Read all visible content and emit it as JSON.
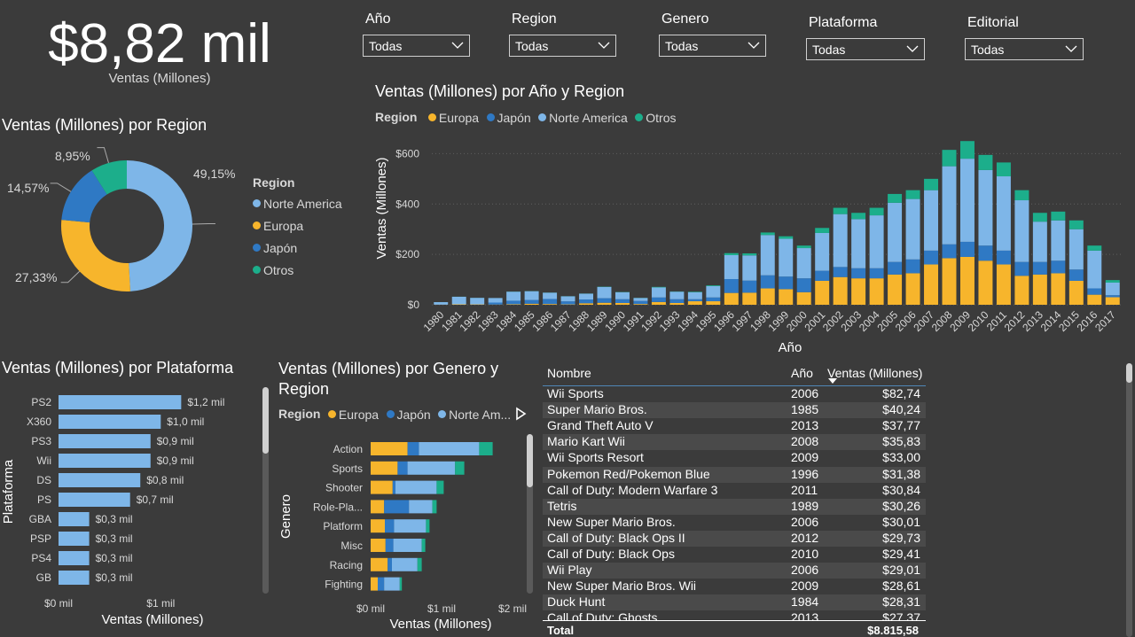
{
  "kpi": {
    "value": "$8,82 mil",
    "label": "Ventas (Millones)"
  },
  "slicers": [
    {
      "label": "Año",
      "value": "Todas"
    },
    {
      "label": "Region",
      "value": "Todas"
    },
    {
      "label": "Genero",
      "value": "Todas"
    },
    {
      "label": "Plataforma",
      "value": "Todas"
    },
    {
      "label": "Editorial",
      "value": "Todas"
    }
  ],
  "colors": {
    "europa": "#f7b52c",
    "japon": "#2f79c4",
    "norte_america": "#7eb6e8",
    "otros": "#1cae8b",
    "background": "#3b3b3b"
  },
  "chart_data": [
    {
      "type": "pie",
      "title": "Ventas (Millones) por Region",
      "legend_title": "Region",
      "legend_position": "right",
      "labels": [
        "Norte America",
        "Europa",
        "Japón",
        "Otros"
      ],
      "values": [
        49.15,
        27.33,
        14.57,
        8.95
      ],
      "value_labels": [
        "49,15%",
        "27,33%",
        "14,57%",
        "8,95%"
      ]
    },
    {
      "type": "bar",
      "title": "Ventas (Millones) por Año y Region",
      "legend_title": "Region",
      "legend_position": "top-left",
      "xlabel": "Año",
      "ylabel": "Ventas (Millones)",
      "ylim": [
        0,
        700
      ],
      "yticks": [
        0,
        200,
        400,
        600
      ],
      "ytick_labels": [
        "$0",
        "$200",
        "$400",
        "$600"
      ],
      "categories": [
        "1980",
        "1981",
        "1982",
        "1983",
        "1984",
        "1985",
        "1986",
        "1987",
        "1988",
        "1989",
        "1990",
        "1991",
        "1992",
        "1993",
        "1994",
        "1995",
        "1996",
        "1997",
        "1998",
        "1999",
        "2000",
        "2001",
        "2002",
        "2003",
        "2004",
        "2005",
        "2006",
        "2007",
        "2008",
        "2009",
        "2010",
        "2011",
        "2012",
        "2013",
        "2014",
        "2015",
        "2016",
        "2017"
      ],
      "series": [
        {
          "name": "Europa",
          "values": [
            0.5,
            1.8,
            1.5,
            0.8,
            2,
            4,
            3,
            1.5,
            6,
            8,
            7,
            3,
            11,
            7,
            14,
            14,
            47,
            48,
            65,
            62,
            50,
            95,
            110,
            105,
            105,
            120,
            125,
            160,
            185,
            190,
            175,
            160,
            115,
            120,
            125,
            95,
            40,
            30
          ]
        },
        {
          "name": "Japón",
          "values": [
            0,
            0,
            0,
            8,
            14,
            15,
            20,
            12,
            15,
            18,
            15,
            12,
            18,
            15,
            8,
            15,
            55,
            48,
            52,
            50,
            55,
            40,
            40,
            40,
            40,
            50,
            55,
            55,
            55,
            60,
            60,
            55,
            55,
            50,
            50,
            45,
            25,
            8
          ]
        },
        {
          "name": "Norte America",
          "values": [
            10,
            30,
            26,
            18,
            36,
            35,
            25,
            20,
            23,
            45,
            28,
            12,
            40,
            30,
            28,
            45,
            95,
            100,
            160,
            150,
            120,
            150,
            210,
            195,
            210,
            235,
            240,
            240,
            310,
            330,
            300,
            295,
            245,
            160,
            160,
            160,
            150,
            50
          ]
        },
        {
          "name": "Otros",
          "values": [
            0.1,
            0.3,
            0.3,
            0.1,
            0.5,
            0.5,
            0.5,
            0.5,
            0.5,
            1,
            1,
            0.5,
            2,
            1,
            2,
            3,
            8,
            8,
            10,
            10,
            10,
            20,
            25,
            25,
            30,
            35,
            35,
            45,
            65,
            70,
            60,
            55,
            40,
            35,
            35,
            35,
            20,
            10
          ]
        }
      ]
    },
    {
      "type": "bar",
      "orientation": "horizontal",
      "title": "Ventas (Millones) por Plataforma",
      "xlabel": "Ventas (Millones)",
      "ylabel": "Plataforma",
      "xlim": [
        0,
        1.7
      ],
      "xtick_labels": [
        "$0 mil",
        "$1 mil"
      ],
      "categories": [
        "PS2",
        "X360",
        "PS3",
        "Wii",
        "DS",
        "PS",
        "GBA",
        "PSP",
        "PS4",
        "GB"
      ],
      "values": [
        1.2,
        1.0,
        0.9,
        0.9,
        0.8,
        0.7,
        0.3,
        0.3,
        0.3,
        0.3
      ],
      "value_labels": [
        "$1,2 mil",
        "$1,0 mil",
        "$0,9 mil",
        "$0,9 mil",
        "$0,8 mil",
        "$0,7 mil",
        "$0,3 mil",
        "$0,3 mil",
        "$0,3 mil",
        "$0,3 mil"
      ]
    },
    {
      "type": "bar",
      "orientation": "horizontal",
      "stacked": true,
      "title": "Ventas (Millones) por Genero y Region",
      "legend_title": "Region",
      "legend_items": [
        "Europa",
        "Japón",
        "Norte Am..."
      ],
      "xlabel": "Ventas (Millones)",
      "ylabel": "Genero",
      "xlim": [
        0,
        2
      ],
      "xtick_labels": [
        "$0 mil",
        "$1 mil",
        "$2 mil"
      ],
      "categories": [
        "Action",
        "Sports",
        "Shooter",
        "Role-Pla...",
        "Platform",
        "Misc",
        "Racing",
        "Fighting"
      ],
      "series": [
        {
          "name": "Europa",
          "values": [
            0.52,
            0.38,
            0.31,
            0.19,
            0.2,
            0.21,
            0.24,
            0.1
          ]
        },
        {
          "name": "Japón",
          "values": [
            0.16,
            0.14,
            0.04,
            0.35,
            0.13,
            0.11,
            0.06,
            0.09
          ]
        },
        {
          "name": "Norte Am...",
          "values": [
            0.85,
            0.67,
            0.58,
            0.33,
            0.45,
            0.4,
            0.36,
            0.22
          ]
        },
        {
          "name": "Otros",
          "values": [
            0.19,
            0.13,
            0.1,
            0.06,
            0.05,
            0.05,
            0.06,
            0.03
          ]
        }
      ]
    }
  ],
  "table": {
    "headers": {
      "nombre": "Nombre",
      "anio": "Año",
      "ventas": "Ventas (Millones)"
    },
    "rows": [
      {
        "nombre": "Wii Sports",
        "anio": "2006",
        "ventas": "$82,74"
      },
      {
        "nombre": "Super Mario Bros.",
        "anio": "1985",
        "ventas": "$40,24"
      },
      {
        "nombre": "Grand Theft Auto V",
        "anio": "2013",
        "ventas": "$37,77"
      },
      {
        "nombre": "Mario Kart Wii",
        "anio": "2008",
        "ventas": "$35,83"
      },
      {
        "nombre": "Wii Sports Resort",
        "anio": "2009",
        "ventas": "$33,00"
      },
      {
        "nombre": "Pokemon Red/Pokemon Blue",
        "anio": "1996",
        "ventas": "$31,38"
      },
      {
        "nombre": "Call of Duty: Modern Warfare 3",
        "anio": "2011",
        "ventas": "$30,84"
      },
      {
        "nombre": "Tetris",
        "anio": "1989",
        "ventas": "$30,26"
      },
      {
        "nombre": "New Super Mario Bros.",
        "anio": "2006",
        "ventas": "$30,01"
      },
      {
        "nombre": "Call of Duty: Black Ops II",
        "anio": "2012",
        "ventas": "$29,73"
      },
      {
        "nombre": "Call of Duty: Black Ops",
        "anio": "2010",
        "ventas": "$29,41"
      },
      {
        "nombre": "Wii Play",
        "anio": "2006",
        "ventas": "$29,01"
      },
      {
        "nombre": "New Super Mario Bros. Wii",
        "anio": "2009",
        "ventas": "$28,61"
      },
      {
        "nombre": "Duck Hunt",
        "anio": "1984",
        "ventas": "$28,31"
      },
      {
        "nombre": "Call of Duty: Ghosts",
        "anio": "2013",
        "ventas": "$27,37"
      }
    ],
    "total": {
      "label": "Total",
      "ventas": "$8.815,58"
    }
  }
}
